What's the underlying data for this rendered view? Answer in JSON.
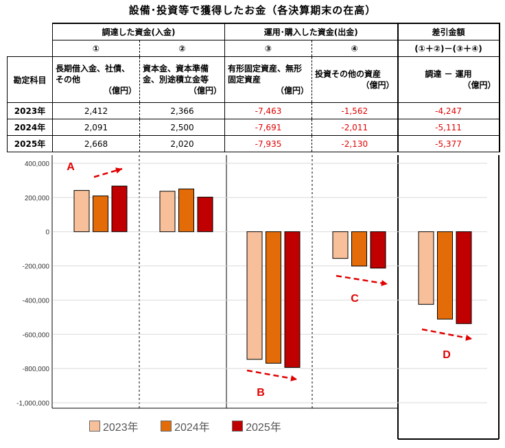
{
  "title": "設備･投資等で獲得したお金（各決算期末の在高）",
  "groups": {
    "funding": "調達した資金(入金)",
    "usage": "運用･購入した資金(出金)",
    "difference": "差引金額"
  },
  "col_marks": [
    "①",
    "②",
    "③",
    "④",
    "(①＋②)－(③＋④)"
  ],
  "row_header": "勘定科目",
  "descriptions": [
    {
      "text": "長期借入金、社債、その他",
      "unit": "（億円）"
    },
    {
      "text": "資本金、資本準備金、別途積立金等",
      "unit": "（億円）"
    },
    {
      "text": "有形固定資産、無形固定資産",
      "unit": "（億円）"
    },
    {
      "text": "投資その他の資産",
      "unit": "（億円）"
    },
    {
      "text": "調達 － 運用",
      "unit": "（億円）"
    }
  ],
  "table_rows": [
    {
      "year": "2023年",
      "cells": [
        "2,412",
        "2,366",
        "-7,463",
        "-1,562",
        "-4,247"
      ]
    },
    {
      "year": "2024年",
      "cells": [
        "2,091",
        "2,500",
        "-7,691",
        "-2,011",
        "-5,111"
      ]
    },
    {
      "year": "2025年",
      "cells": [
        "2,668",
        "2,020",
        "-7,935",
        "-2,130",
        "-5,377"
      ]
    }
  ],
  "colors": {
    "y2023": "#f8c09a",
    "y2024": "#e36c09",
    "y2025": "#c00000",
    "negative": "#e00000",
    "arrow": "#e00000",
    "grid": "#d9d9d9"
  },
  "chart_data": {
    "type": "bar",
    "categories": [
      "①",
      "②",
      "③",
      "④",
      "(①＋②)－(③＋④)"
    ],
    "series": [
      {
        "name": "2023年",
        "values": [
          241200,
          236600,
          -746300,
          -156200,
          -424700
        ]
      },
      {
        "name": "2024年",
        "values": [
          209100,
          250000,
          -769100,
          -201100,
          -511100
        ]
      },
      {
        "name": "2025年",
        "values": [
          266800,
          202000,
          -793500,
          -213000,
          -537700
        ]
      }
    ],
    "ylim": [
      -1000000,
      400000
    ],
    "yticks": [
      400000,
      200000,
      0,
      -200000,
      -400000,
      -600000,
      -800000,
      -1000000
    ],
    "ytick_labels": [
      "400,000",
      "200,000",
      "0",
      "-200,000",
      "-400,000",
      "-600,000",
      "-800,000",
      "-1,000,000"
    ],
    "annotations": [
      "A",
      "B",
      "C",
      "D"
    ],
    "legend": [
      "2023年",
      "2024年",
      "2025年"
    ],
    "grid": true,
    "legend_position": "bottom"
  }
}
